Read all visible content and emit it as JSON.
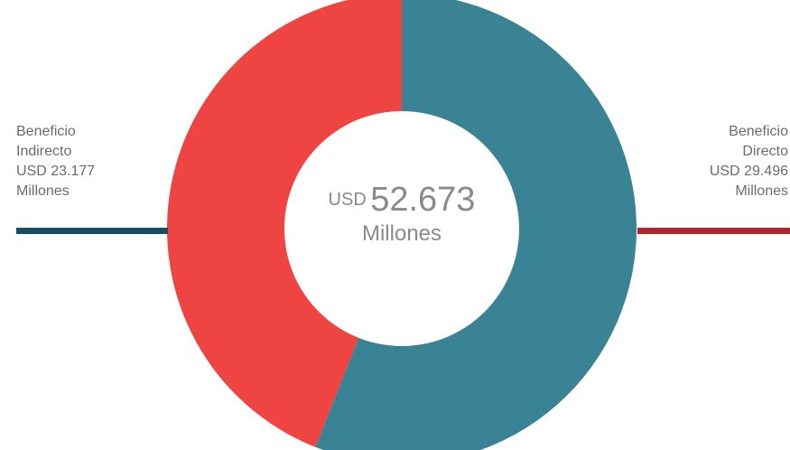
{
  "chart_data": {
    "type": "pie",
    "donut": true,
    "slices": [
      {
        "id": "directo",
        "label_lines": [
          "Beneficio",
          "Directo",
          "USD 29.496",
          "Millones"
        ],
        "value": 29.496,
        "color": "#3a8394",
        "leader_color": "#b0262e"
      },
      {
        "id": "indirecto",
        "label_lines": [
          "Beneficio",
          "Indirecto",
          "USD 23.177",
          "Millones"
        ],
        "value": 23.177,
        "color": "#ee4442",
        "leader_color": "#174d63"
      }
    ],
    "center": {
      "prefix": "USD",
      "value": "52.673",
      "unit": "Millones"
    }
  }
}
